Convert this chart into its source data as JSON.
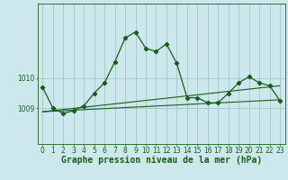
{
  "title": "Graphe pression niveau de la mer (hPa)",
  "background_color": "#cce8ec",
  "plot_bg_color": "#cce8ec",
  "line_color": "#1a5c1a",
  "grid_color": "#9bbfc4",
  "xlim": [
    -0.5,
    23.5
  ],
  "ylim": [
    1007.8,
    1012.5
  ],
  "yticks": [
    1009,
    1010
  ],
  "xticks": [
    0,
    1,
    2,
    3,
    4,
    5,
    6,
    7,
    8,
    9,
    10,
    11,
    12,
    13,
    14,
    15,
    16,
    17,
    18,
    19,
    20,
    21,
    22,
    23
  ],
  "series1": [
    1009.7,
    1009.0,
    1008.82,
    1008.92,
    1009.08,
    1009.5,
    1009.85,
    1010.55,
    1011.35,
    1011.55,
    1011.0,
    1010.9,
    1011.15,
    1010.5,
    1009.35,
    1009.35,
    1009.18,
    1009.18,
    1009.5,
    1009.85,
    1010.05,
    1009.85,
    1009.75,
    1009.25
  ],
  "series2_x": [
    0,
    23
  ],
  "series2_y": [
    1008.88,
    1009.28
  ],
  "series3_x": [
    0,
    23
  ],
  "series3_y": [
    1008.88,
    1009.75
  ],
  "title_fontsize": 7.0,
  "tick_fontsize": 5.5,
  "figsize": [
    3.2,
    2.0
  ],
  "dpi": 100
}
